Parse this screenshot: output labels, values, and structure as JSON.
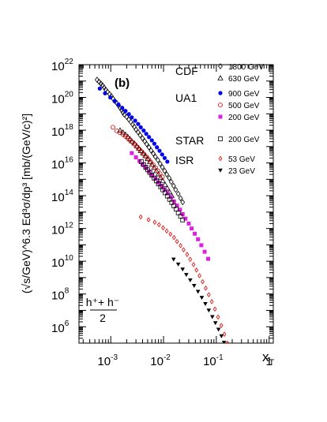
{
  "chart_data": {
    "type": "scatter",
    "panel_label": "(b)",
    "xlabel": "x",
    "xlabel_sub": "T",
    "ylabel": "(√s/GeV)^6.3 Ed³σ/dp³ [mb/(GeV/c)²]",
    "x_scale": "log",
    "y_scale": "log",
    "xlim": [
      0.00025,
      1.2
    ],
    "ylim": [
      100000,
      1e+22
    ],
    "x_ticks": [
      {
        "value": 0.001,
        "base": "10",
        "exp": "-3"
      },
      {
        "value": 0.01,
        "base": "10",
        "exp": "-2"
      },
      {
        "value": 0.1,
        "base": "10",
        "exp": "-1"
      },
      {
        "value": 1,
        "base": "1",
        "exp": ""
      }
    ],
    "y_ticks": [
      {
        "value": 1000000.0,
        "base": "10",
        "exp": "6"
      },
      {
        "value": 100000000.0,
        "base": "10",
        "exp": "8"
      },
      {
        "value": 10000000000.0,
        "base": "10",
        "exp": "10"
      },
      {
        "value": 1000000000000.0,
        "base": "10",
        "exp": "12"
      },
      {
        "value": 100000000000000.0,
        "base": "10",
        "exp": "14"
      },
      {
        "value": 1e+16,
        "base": "10",
        "exp": "16"
      },
      {
        "value": 1e+18,
        "base": "10",
        "exp": "18"
      },
      {
        "value": 1e+20,
        "base": "10",
        "exp": "20"
      },
      {
        "value": 1e+22,
        "base": "10",
        "exp": "22"
      }
    ],
    "formula_label": {
      "numerator": "h⁺+ h⁻",
      "denominator": "2"
    },
    "legend_groups": [
      {
        "experiment": "CDF",
        "entries": [
          "1800 GeV",
          "630 GeV"
        ]
      },
      {
        "experiment": "UA1",
        "entries": [
          "900 GeV",
          "500 GeV",
          "200 GeV"
        ]
      },
      {
        "experiment": "STAR",
        "entries": [
          "200 GeV"
        ]
      },
      {
        "experiment": "ISR",
        "entries": [
          "53 GeV",
          "23 GeV"
        ]
      }
    ],
    "series": [
      {
        "name": "CDF 1800 GeV",
        "group": "CDF",
        "energy": "1800 GeV",
        "marker": "diamond-open",
        "color": "#000000",
        "x": [
          0.00055,
          0.0006,
          0.00065,
          0.0007,
          0.00075,
          0.0008,
          0.00087,
          0.00095,
          0.00103,
          0.0011,
          0.0012,
          0.0013,
          0.0014,
          0.0015,
          0.0016,
          0.0017,
          0.0018,
          0.002,
          0.0022,
          0.0024,
          0.0026,
          0.0028,
          0.003,
          0.0033,
          0.0036,
          0.004,
          0.0044,
          0.0048,
          0.0053,
          0.0058,
          0.0064,
          0.007,
          0.0078,
          0.0086,
          0.0095,
          0.0105,
          0.0115,
          0.0128,
          0.014,
          0.0155,
          0.017,
          0.019,
          0.021,
          0.023
        ],
        "y": [
          1.2e+21,
          9e+20,
          7e+20,
          5.5e+20,
          4e+20,
          3e+20,
          2.2e+20,
          1.6e+20,
          1.2e+20,
          8.5e+19,
          6e+19,
          4.5e+19,
          3.2e+19,
          2.3e+19,
          1.7e+19,
          1.2e+19,
          9e+18,
          6.5e+18,
          4.5e+18,
          3.2e+18,
          2.2e+18,
          1.6e+18,
          1.1e+18,
          7.5e+17,
          5e+17,
          3.2e+17,
          2.1e+17,
          1.4e+17,
          9e+16,
          5.8e+16,
          3.7e+16,
          2.4e+16,
          1.5e+16,
          9000000000000000.0,
          5500000000000000.0,
          3300000000000000.0,
          2000000000000000.0,
          1200000000000000.0,
          700000000000000.0,
          400000000000000.0,
          230000000000000.0,
          130000000000000.0,
          70000000000000.0,
          40000000000000.0
        ]
      },
      {
        "name": "CDF 630 GeV",
        "group": "CDF",
        "energy": "630 GeV",
        "marker": "triangle-open",
        "color": "#000000",
        "x": [
          0.0015,
          0.0017,
          0.0019,
          0.0021,
          0.0023,
          0.0025,
          0.0028,
          0.0031,
          0.0034,
          0.0037,
          0.0041,
          0.0045,
          0.005,
          0.0055,
          0.006,
          0.0066,
          0.0073,
          0.008,
          0.0088,
          0.0097,
          0.0107,
          0.0118,
          0.013,
          0.0143
        ],
        "y": [
          1e+18,
          7.5e+17,
          5.5e+17,
          4e+17,
          3e+17,
          2.2e+17,
          1.6e+17,
          1.1e+17,
          8e+16,
          5.6e+16,
          3.9e+16,
          2.7e+16,
          1.8e+16,
          1.2e+16,
          8000000000000000.0,
          5200000000000000.0,
          3300000000000000.0,
          2100000000000000.0,
          1300000000000000.0,
          800000000000000.0,
          480000000000000.0,
          290000000000000.0,
          170000000000000.0,
          100000000000000.0
        ]
      },
      {
        "name": "UA1 900 GeV",
        "group": "UA1",
        "energy": "900 GeV",
        "marker": "circle-filled",
        "color": "#0000ee",
        "x": [
          0.00062,
          0.00078,
          0.00098,
          0.00118,
          0.0014,
          0.00165,
          0.0019,
          0.0022,
          0.0025,
          0.0029,
          0.0033,
          0.0037,
          0.0042,
          0.0047,
          0.0053,
          0.006,
          0.0067,
          0.0075,
          0.0084,
          0.0094,
          0.0105,
          0.0118
        ],
        "y": [
          3.5e+20,
          1.8e+20,
          1e+20,
          6e+19,
          3.7e+19,
          2.3e+19,
          1.5e+19,
          9.5e+18,
          6e+18,
          3.8e+18,
          2.4e+18,
          1.5e+18,
          9.5e+17,
          6e+17,
          3.8e+17,
          2.4e+17,
          1.5e+17,
          9e+16,
          5.5e+16,
          3.3e+16,
          2e+16,
          1.2e+16
        ]
      },
      {
        "name": "UA1 500 GeV",
        "group": "UA1",
        "energy": "500 GeV",
        "marker": "circle-open",
        "color": "#e00000",
        "x": [
          0.0011,
          0.0013,
          0.0015,
          0.0017,
          0.0019,
          0.0021,
          0.0023,
          0.0026,
          0.0029,
          0.0032,
          0.0035,
          0.0039,
          0.0043,
          0.0048,
          0.0053,
          0.0058,
          0.0064,
          0.0071,
          0.0078,
          0.0086,
          0.0095
        ],
        "y": [
          1.5e+18,
          9e+17,
          7e+17,
          5.5e+17,
          4.2e+17,
          3.2e+17,
          2.5e+17,
          1.8e+17,
          1.3e+17,
          9.5e+16,
          6.8e+16,
          4.8e+16,
          3.4e+16,
          2.3e+16,
          1.6e+16,
          1.1e+16,
          7500000000000000.0,
          5000000000000000.0,
          3300000000000000.0,
          2200000000000000.0,
          1400000000000000.0
        ]
      },
      {
        "name": "UA1 200 GeV",
        "group": "UA1",
        "energy": "200 GeV",
        "marker": "square-filled",
        "color": "#e020e0",
        "x": [
          0.0025,
          0.003,
          0.0035,
          0.004,
          0.0046,
          0.0053,
          0.006,
          0.007,
          0.008,
          0.0092,
          0.0105,
          0.012,
          0.0138,
          0.0158,
          0.018,
          0.0205,
          0.023,
          0.026,
          0.03,
          0.034,
          0.039,
          0.045,
          0.052,
          0.06,
          0.07
        ],
        "y": [
          4e+16,
          2.2e+16,
          1.3e+16,
          8000000000000000.0,
          5000000000000000.0,
          3000000000000000.0,
          1800000000000000.0,
          1100000000000000.0,
          650000000000000.0,
          400000000000000.0,
          240000000000000.0,
          140000000000000.0,
          80000000000000.0,
          45000000000000.0,
          25000000000000.0,
          14000000000000.0,
          7500000000000.0,
          4000000000000.0,
          2000000000000.0,
          1000000000000.0,
          480000000000.0,
          220000000000.0,
          95000000000.0,
          38000000000.0,
          14000000000.0
        ]
      },
      {
        "name": "STAR 200 GeV",
        "group": "STAR",
        "energy": "200 GeV",
        "marker": "square-open",
        "color": "#000000",
        "x": [
          0.0038,
          0.0042,
          0.0046,
          0.005,
          0.0055,
          0.006,
          0.0066,
          0.0073,
          0.008,
          0.0088,
          0.0097,
          0.0107,
          0.0118,
          0.013,
          0.0143,
          0.0157,
          0.0173,
          0.019,
          0.021,
          0.023
        ],
        "y": [
          1.2e+16,
          8000000000000000.0,
          5500000000000000.0,
          3800000000000000.0,
          2600000000000000.0,
          1800000000000000.0,
          1200000000000000.0,
          800000000000000.0,
          530000000000000.0,
          350000000000000.0,
          230000000000000.0,
          150000000000000.0,
          95000000000000.0,
          60000000000000.0,
          38000000000000.0,
          24000000000000.0,
          15000000000000.0,
          9000000000000.0,
          5500000000000.0,
          3300000000000.0
        ]
      },
      {
        "name": "ISR 53 GeV",
        "group": "ISR",
        "energy": "53 GeV",
        "marker": "diamond-open-small",
        "color": "#e00000",
        "x": [
          0.0037,
          0.0052,
          0.0068,
          0.0082,
          0.0098,
          0.0115,
          0.0135,
          0.0158,
          0.018,
          0.021,
          0.024,
          0.028,
          0.032,
          0.037,
          0.042,
          0.048,
          0.055,
          0.063,
          0.072,
          0.082,
          0.094,
          0.108,
          0.124,
          0.142,
          0.162
        ],
        "y": [
          5000000000000.0,
          3400000000000.0,
          2400000000000.0,
          1700000000000.0,
          1100000000000.0,
          700000000000.0,
          450000000000.0,
          280000000000.0,
          160000000000.0,
          90000000000.0,
          50000000000.0,
          26000000000.0,
          13000000000.0,
          6200000000.0,
          2900000000.0,
          1300000000.0,
          560000000.0,
          230000000.0,
          90000000.0,
          34000000.0,
          12000000.0,
          3900000.0,
          1200000.0,
          350000.0,
          100000.0
        ]
      },
      {
        "name": "ISR 23 GeV",
        "group": "ISR",
        "energy": "23 GeV",
        "marker": "triangle-down-filled",
        "color": "#000000",
        "x": [
          0.0155,
          0.019,
          0.023,
          0.027,
          0.032,
          0.038,
          0.045,
          0.053,
          0.062,
          0.072,
          0.084,
          0.096,
          0.11,
          0.125,
          0.14,
          0.16,
          0.18
        ],
        "y": [
          13000000000.0,
          6500000000.0,
          3200000000.0,
          1500000000.0,
          700000000.0,
          320000000.0,
          140000000.0,
          60000000.0,
          25000000.0,
          10000000.0,
          4000000.0,
          1700000.0,
          680000.0,
          270000.0,
          110000.0,
          45000.0,
          20000.0
        ]
      }
    ]
  }
}
